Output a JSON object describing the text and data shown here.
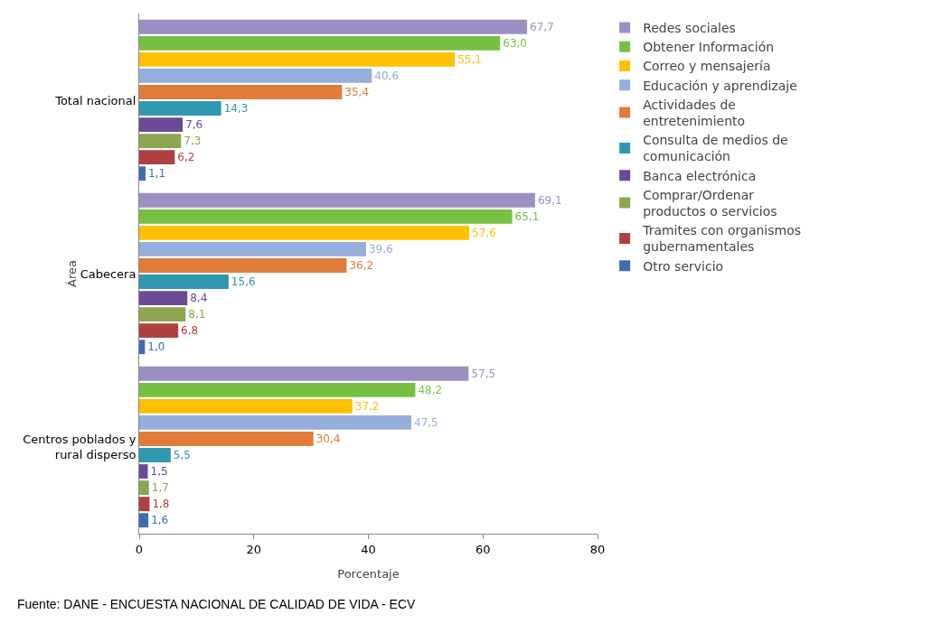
{
  "chart_data": {
    "type": "bar",
    "orientation": "horizontal",
    "xlabel": "Porcentaje",
    "ylabel": "Área",
    "categories": [
      "Total nacional",
      "Cabecera",
      "Centros poblados y rural disperso"
    ],
    "series": [
      {
        "name": "Redes sociales",
        "color": "#9b8fc4",
        "values": [
          67.7,
          69.1,
          57.5
        ],
        "value_labels": [
          "67,7",
          "69,1",
          "57,5"
        ]
      },
      {
        "name": "Obtener Información",
        "color": "#77c043",
        "values": [
          63.0,
          65.1,
          48.2
        ],
        "value_labels": [
          "63,0",
          "65,1",
          "48,2"
        ]
      },
      {
        "name": "Correo y mensajería",
        "color": "#ffc000",
        "values": [
          55.1,
          57.6,
          37.2
        ],
        "value_labels": [
          "55,1",
          "57,6",
          "37,2"
        ]
      },
      {
        "name": "Educación y aprendizaje",
        "color": "#95aedb",
        "values": [
          40.6,
          39.6,
          47.5
        ],
        "value_labels": [
          "40,6",
          "39,6",
          "47,5"
        ]
      },
      {
        "name": "Actividades de entretenimiento",
        "color": "#e07b39",
        "values": [
          35.4,
          36.2,
          30.4
        ],
        "value_labels": [
          "35,4",
          "36,2",
          "30,4"
        ]
      },
      {
        "name": "Consulta de medios de comunicación",
        "color": "#2f97b0",
        "values": [
          14.3,
          15.6,
          5.5
        ],
        "value_labels": [
          "14,3",
          "15,6",
          "5,5"
        ]
      },
      {
        "name": "Banca electrónica",
        "color": "#6a4a94",
        "values": [
          7.6,
          8.4,
          1.5
        ],
        "value_labels": [
          "7,6",
          "8,4",
          "1,5"
        ]
      },
      {
        "name": "Comprar/Ordenar productos o servicios",
        "color": "#8da550",
        "values": [
          7.3,
          8.1,
          1.7
        ],
        "value_labels": [
          "7,3",
          "8,1",
          "1,7"
        ]
      },
      {
        "name": "Tramites con organismos gubernamentales",
        "color": "#b0403e",
        "values": [
          6.2,
          6.8,
          1.8
        ],
        "value_labels": [
          "6,2",
          "6,8",
          "1,8"
        ]
      },
      {
        "name": "Otro servicio",
        "color": "#3e6cb4",
        "values": [
          1.1,
          1.0,
          1.6
        ],
        "value_labels": [
          "1,1",
          "1,0",
          "1,6"
        ]
      }
    ],
    "xlim": [
      0,
      80
    ],
    "xticks": [
      0,
      20,
      40,
      60,
      80
    ],
    "grid": false,
    "legend": "right",
    "annotations": [
      "Fuente: DANE - ENCUESTA NACIONAL DE CALIDAD DE VIDA - ECV"
    ]
  }
}
